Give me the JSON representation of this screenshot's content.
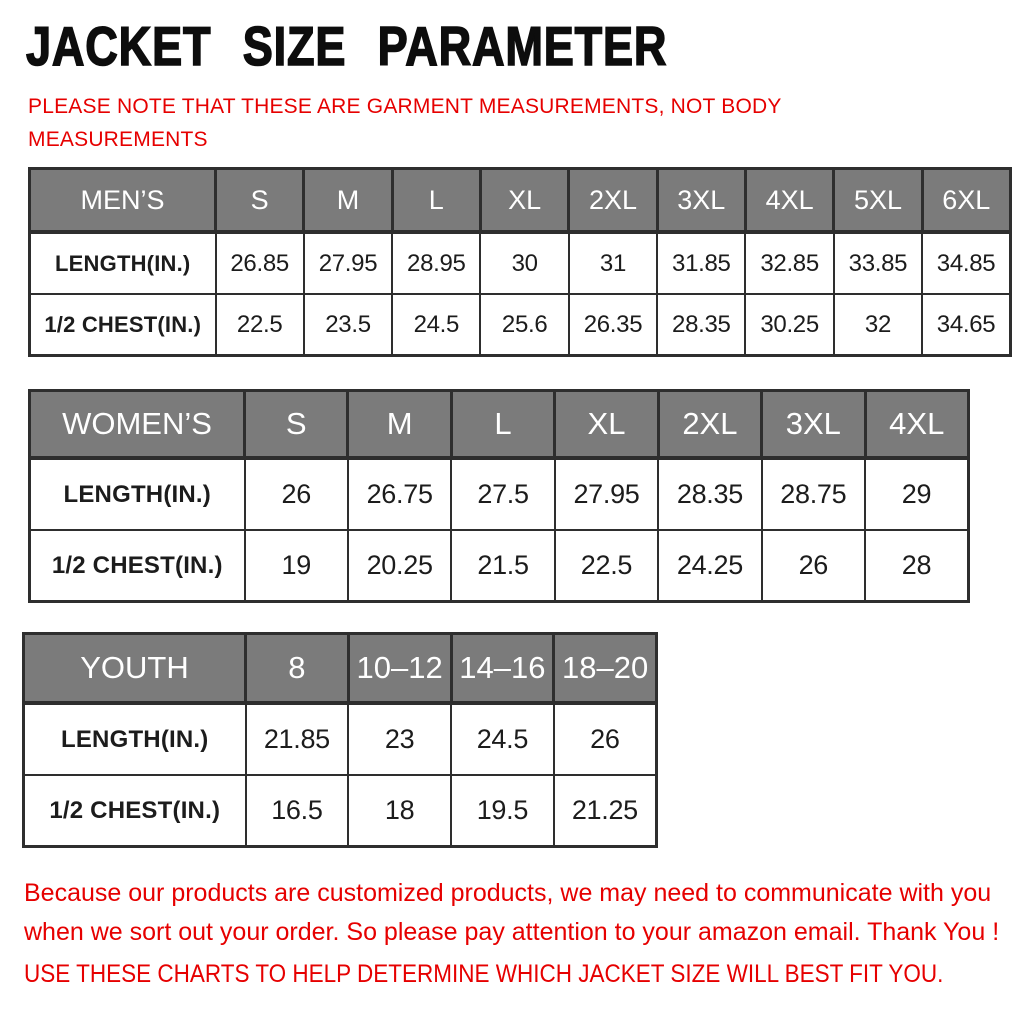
{
  "page": {
    "title": "JACKET SIZE PARAMETER",
    "note_lines": [
      "PLEASE NOTE THAT THESE ARE GARMENT MEASUREMENTS, NOT BODY",
      "MEASUREMENTS"
    ],
    "footer_lines": [
      "Because our products are customized products, we may need to communicate with you",
      "when we sort out your order. So please pay attention to your amazon email. Thank You !"
    ],
    "footer_caps": "USE THESE CHARTS TO HELP DETERMINE WHICH JACKET SIZE WILL BEST FIT YOU."
  },
  "colors": {
    "accent_red": "#e60000",
    "header_gray": "#7b7b7b",
    "border_dark": "#2e2e2e",
    "header_text": "#ffffff",
    "body_text": "#1c1c1c"
  },
  "tables": [
    {
      "name": "mens",
      "header": [
        "MEN’S",
        "S",
        "M",
        "L",
        "XL",
        "2XL",
        "3XL",
        "4XL",
        "5XL",
        "6XL"
      ],
      "rows": [
        {
          "label": "LENGTH(IN.)",
          "values": [
            "26.85",
            "27.95",
            "28.95",
            "30",
            "31",
            "31.85",
            "32.85",
            "33.85",
            "34.85"
          ]
        },
        {
          "label": "1/2 CHEST(IN.)",
          "values": [
            "22.5",
            "23.5",
            "24.5",
            "25.6",
            "26.35",
            "28.35",
            "30.25",
            "32",
            "34.65"
          ]
        }
      ]
    },
    {
      "name": "womens",
      "header": [
        "WOMEN’S",
        "S",
        "M",
        "L",
        "XL",
        "2XL",
        "3XL",
        "4XL"
      ],
      "rows": [
        {
          "label": "LENGTH(IN.)",
          "values": [
            "26",
            "26.75",
            "27.5",
            "27.95",
            "28.35",
            "28.75",
            "29"
          ]
        },
        {
          "label": "1/2 CHEST(IN.)",
          "values": [
            "19",
            "20.25",
            "21.5",
            "22.5",
            "24.25",
            "26",
            "28"
          ]
        }
      ]
    },
    {
      "name": "youth",
      "header": [
        "YOUTH",
        "8",
        "10–12",
        "14–16",
        "18–20"
      ],
      "rows": [
        {
          "label": "LENGTH(IN.)",
          "values": [
            "21.85",
            "23",
            "24.5",
            "26"
          ]
        },
        {
          "label": "1/2 CHEST(IN.)",
          "values": [
            "16.5",
            "18",
            "19.5",
            "21.25"
          ]
        }
      ]
    }
  ]
}
